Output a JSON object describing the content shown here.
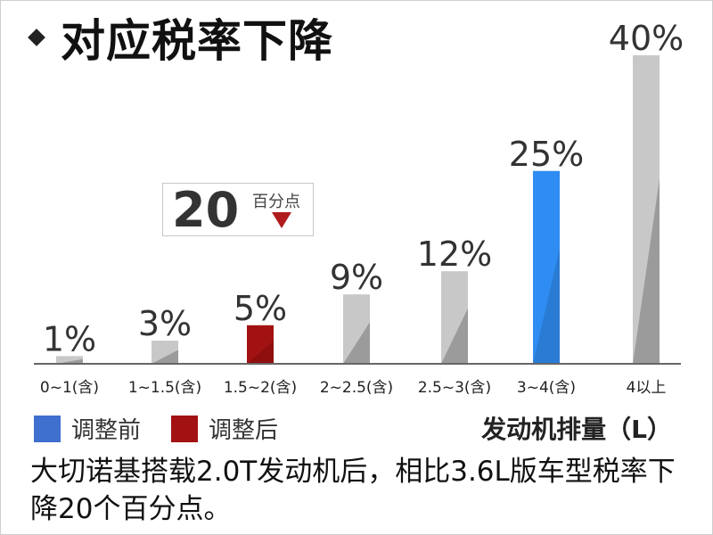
{
  "title": "对应税率下降",
  "callout": {
    "value": "20",
    "unit": "百分点"
  },
  "legend": [
    {
      "label": "调整前",
      "color": "#3f6fcf"
    },
    {
      "label": "调整后",
      "color": "#a31212"
    }
  ],
  "caption": "大切诺基搭载2.0T发动机后，相比3.6L版车型税率下降20个百分点。",
  "chart_data": {
    "type": "bar",
    "xlabel": "发动机排量（L）",
    "ylabel": "",
    "ylim": [
      0,
      40
    ],
    "grid": false,
    "categories": [
      "0~1(含)",
      "1~1.5(含)",
      "1.5~2(含)",
      "2~2.5(含)",
      "2.5~3(含)",
      "3~4(含)",
      "4以上"
    ],
    "values": [
      1,
      3,
      5,
      9,
      12,
      25,
      40
    ],
    "value_labels": [
      "1%",
      "3%",
      "5%",
      "9%",
      "12%",
      "25%",
      "40%"
    ],
    "highlight": {
      "before_index": 5,
      "before_color": "#2f8cf2",
      "after_index": 2,
      "after_color": "#a31212"
    },
    "default_color": "#c8c8c8"
  }
}
